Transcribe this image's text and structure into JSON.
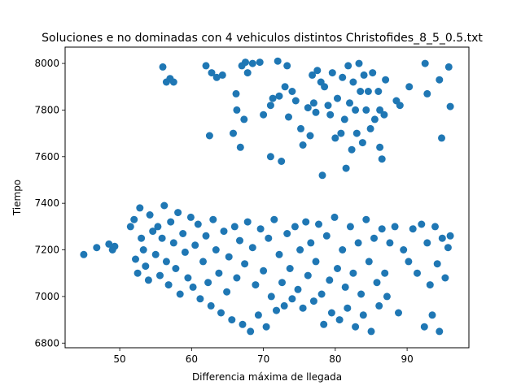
{
  "chart_data": {
    "type": "scatter",
    "title": "Soluciones e no dominadas con 4 vehiculos distintos Christofides_8_5_0.5.txt",
    "xlabel": "Differencia máxima de llegada",
    "ylabel": "Tiempo",
    "xlim": [
      42.4,
      98.6
    ],
    "ylim": [
      6780,
      8070
    ],
    "xticks": [
      50,
      60,
      70,
      80,
      90
    ],
    "yticks": [
      6800,
      7000,
      7200,
      7400,
      7600,
      7800,
      8000
    ],
    "grid": false,
    "legend": "none",
    "marker_color": "#1f77b4",
    "series": [
      {
        "points": [
          [
            45,
            7180
          ],
          [
            46.8,
            7210
          ],
          [
            48.5,
            7225
          ],
          [
            49,
            7200
          ],
          [
            49.3,
            7215
          ],
          [
            51.5,
            7300
          ],
          [
            52,
            7330
          ],
          [
            52.2,
            7160
          ],
          [
            52.5,
            7100
          ],
          [
            52.8,
            7380
          ],
          [
            53,
            7250
          ],
          [
            53.3,
            7200
          ],
          [
            53.6,
            7130
          ],
          [
            54,
            7070
          ],
          [
            54.2,
            7350
          ],
          [
            54.6,
            7280
          ],
          [
            55,
            7180
          ],
          [
            55.3,
            7300
          ],
          [
            55.6,
            7090
          ],
          [
            55.9,
            7250
          ],
          [
            56.2,
            7390
          ],
          [
            56.5,
            7150
          ],
          [
            56.8,
            7050
          ],
          [
            57.1,
            7320
          ],
          [
            57.5,
            7230
          ],
          [
            57.8,
            7120
          ],
          [
            58.1,
            7360
          ],
          [
            58.4,
            7010
          ],
          [
            58.8,
            7270
          ],
          [
            59.1,
            7190
          ],
          [
            59.5,
            7080
          ],
          [
            59.9,
            7340
          ],
          [
            60.2,
            7040
          ],
          [
            60.5,
            7220
          ],
          [
            60.9,
            7310
          ],
          [
            61.2,
            6990
          ],
          [
            61.6,
            7150
          ],
          [
            62,
            7260
          ],
          [
            62.3,
            7060
          ],
          [
            62.7,
            6960
          ],
          [
            63,
            7330
          ],
          [
            63.4,
            7200
          ],
          [
            63.8,
            7100
          ],
          [
            64.1,
            6930
          ],
          [
            64.5,
            7280
          ],
          [
            64.9,
            7020
          ],
          [
            65.2,
            7170
          ],
          [
            65.6,
            6900
          ],
          [
            66,
            7300
          ],
          [
            66.3,
            7080
          ],
          [
            66.7,
            7240
          ],
          [
            67.1,
            6880
          ],
          [
            67.4,
            7140
          ],
          [
            67.8,
            7320
          ],
          [
            68.2,
            6850
          ],
          [
            68.5,
            7210
          ],
          [
            68.9,
            7050
          ],
          [
            69.3,
            6920
          ],
          [
            69.6,
            7290
          ],
          [
            70,
            7110
          ],
          [
            70.4,
            6870
          ],
          [
            70.7,
            7250
          ],
          [
            71.1,
            7000
          ],
          [
            71.5,
            7330
          ],
          [
            71.8,
            6940
          ],
          [
            72.2,
            7180
          ],
          [
            72.6,
            7060
          ],
          [
            72.9,
            6960
          ],
          [
            73.3,
            7270
          ],
          [
            73.7,
            7120
          ],
          [
            74,
            6990
          ],
          [
            74.4,
            7300
          ],
          [
            74.8,
            7030
          ],
          [
            75.1,
            7200
          ],
          [
            75.5,
            6950
          ],
          [
            75.9,
            7320
          ],
          [
            76.2,
            7090
          ],
          [
            76.6,
            7230
          ],
          [
            77,
            6980
          ],
          [
            77.3,
            7150
          ],
          [
            77.7,
            7310
          ],
          [
            78.1,
            7010
          ],
          [
            78.4,
            6880
          ],
          [
            78.8,
            7260
          ],
          [
            79.2,
            7070
          ],
          [
            79.5,
            6930
          ],
          [
            79.9,
            7340
          ],
          [
            80.3,
            7120
          ],
          [
            80.6,
            6900
          ],
          [
            81,
            7200
          ],
          [
            81.4,
            7040
          ],
          [
            81.7,
            6950
          ],
          [
            82.1,
            7300
          ],
          [
            82.5,
            7100
          ],
          [
            82.8,
            6870
          ],
          [
            83.2,
            7230
          ],
          [
            83.6,
            7010
          ],
          [
            83.9,
            6920
          ],
          [
            84.3,
            7330
          ],
          [
            84.7,
            7150
          ],
          [
            85,
            6850
          ],
          [
            85.4,
            7250
          ],
          [
            85.8,
            7060
          ],
          [
            86.1,
            6960
          ],
          [
            86.5,
            7290
          ],
          [
            86.9,
            7100
          ],
          [
            87.2,
            7000
          ],
          [
            87.6,
            7230
          ],
          [
            88.3,
            7300
          ],
          [
            88.8,
            6930
          ],
          [
            89.5,
            7200
          ],
          [
            90.2,
            7150
          ],
          [
            90.8,
            7290
          ],
          [
            91.4,
            7100
          ],
          [
            92,
            7310
          ],
          [
            92.4,
            6870
          ],
          [
            92.8,
            7230
          ],
          [
            93.2,
            7050
          ],
          [
            93.5,
            6920
          ],
          [
            93.9,
            7300
          ],
          [
            94.2,
            7140
          ],
          [
            94.5,
            6850
          ],
          [
            94.9,
            7250
          ],
          [
            95.3,
            7080
          ],
          [
            95.7,
            7210
          ],
          [
            96,
            7260
          ],
          [
            56,
            7985
          ],
          [
            56.5,
            7920
          ],
          [
            57,
            7935
          ],
          [
            57.5,
            7920
          ],
          [
            62,
            7990
          ],
          [
            62.5,
            7690
          ],
          [
            62.8,
            7960
          ],
          [
            63.5,
            7940
          ],
          [
            64.3,
            7950
          ],
          [
            65.8,
            7700
          ],
          [
            66.2,
            7870
          ],
          [
            66.3,
            7800
          ],
          [
            66.8,
            7640
          ],
          [
            67,
            7990
          ],
          [
            67.3,
            7760
          ],
          [
            67.5,
            8005
          ],
          [
            67.8,
            7960
          ],
          [
            68.5,
            8000
          ],
          [
            69.5,
            8005
          ],
          [
            70,
            7780
          ],
          [
            71,
            7600
          ],
          [
            71,
            7820
          ],
          [
            71.3,
            7850
          ],
          [
            72,
            8010
          ],
          [
            72.2,
            7860
          ],
          [
            72.5,
            7580
          ],
          [
            73,
            7900
          ],
          [
            73.3,
            7990
          ],
          [
            73.5,
            7770
          ],
          [
            74,
            7880
          ],
          [
            74.5,
            7840
          ],
          [
            75.2,
            7720
          ],
          [
            75.5,
            7650
          ],
          [
            76.2,
            7810
          ],
          [
            76.5,
            7690
          ],
          [
            76.8,
            7950
          ],
          [
            77,
            7830
          ],
          [
            77.3,
            7790
          ],
          [
            77.5,
            7970
          ],
          [
            78,
            7920
          ],
          [
            78.2,
            7520
          ],
          [
            78.5,
            7900
          ],
          [
            79,
            7820
          ],
          [
            79.3,
            7780
          ],
          [
            79.6,
            7960
          ],
          [
            80,
            7680
          ],
          [
            80.3,
            7850
          ],
          [
            80.8,
            7700
          ],
          [
            81,
            7940
          ],
          [
            81.3,
            7760
          ],
          [
            81.5,
            7550
          ],
          [
            81.8,
            7990
          ],
          [
            82,
            7830
          ],
          [
            82.3,
            7630
          ],
          [
            82.5,
            7920
          ],
          [
            82.8,
            7800
          ],
          [
            83,
            7700
          ],
          [
            83.3,
            8000
          ],
          [
            83.5,
            7880
          ],
          [
            83.8,
            7660
          ],
          [
            84,
            7950
          ],
          [
            84.3,
            7800
          ],
          [
            84.6,
            7880
          ],
          [
            84.9,
            7720
          ],
          [
            85.2,
            7960
          ],
          [
            85.5,
            7760
          ],
          [
            86,
            7880
          ],
          [
            86.2,
            7800
          ],
          [
            86.2,
            7640
          ],
          [
            86.5,
            7590
          ],
          [
            86.8,
            7780
          ],
          [
            87,
            7930
          ],
          [
            88.5,
            7840
          ],
          [
            89,
            7820
          ],
          [
            90.3,
            7900
          ],
          [
            92.5,
            8000
          ],
          [
            92.8,
            7870
          ],
          [
            94.5,
            7930
          ],
          [
            94.8,
            7680
          ],
          [
            95.8,
            7985
          ],
          [
            96,
            7815
          ]
        ]
      }
    ]
  }
}
